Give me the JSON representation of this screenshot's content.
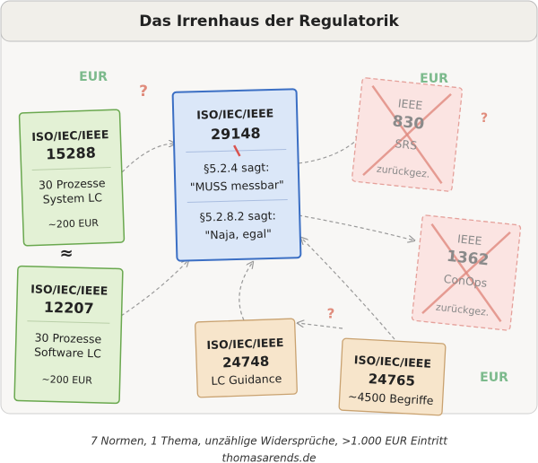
{
  "title": "Das Irrenhaus der Regulatorik",
  "nodes": [
    {
      "standard": "ISO/IEC/IEEE",
      "number": "15288",
      "lines": [
        "30 Prozesse",
        "System LC",
        "~200 EUR"
      ]
    },
    {
      "standard": "ISO/IEC/IEEE",
      "number": "12207",
      "lines": [
        "30 Prozesse",
        "Software LC",
        "~200 EUR"
      ]
    },
    {
      "standard": "ISO/IEC/IEEE",
      "number": "29148",
      "lines": [
        "§5.2.4 sagt:",
        "\"MUSS messbar\"",
        "§5.2.8.2 sagt:",
        "\"Naja, egal\""
      ]
    },
    {
      "standard": "IEEE",
      "number": "830",
      "lines": [
        "SRS",
        "zurückgez."
      ]
    },
    {
      "standard": "IEEE",
      "number": "1362",
      "lines": [
        "ConOps",
        "zurückgez."
      ]
    },
    {
      "standard": "ISO/IEC/IEEE",
      "number": "24748",
      "lines": [
        "LC Guidance"
      ]
    },
    {
      "standard": "ISO/IEC/IEEE",
      "number": "24765",
      "lines": [
        "~4500 Begriffe"
      ]
    }
  ],
  "annotations": [
    "EUR",
    "?",
    "EUR",
    "?",
    "≈",
    "?",
    "EUR"
  ],
  "caption": [
    "7 Normen, 1 Thema, unzählige Widersprüche, >1.000 EUR Eintritt",
    "thomasarends.de"
  ]
}
